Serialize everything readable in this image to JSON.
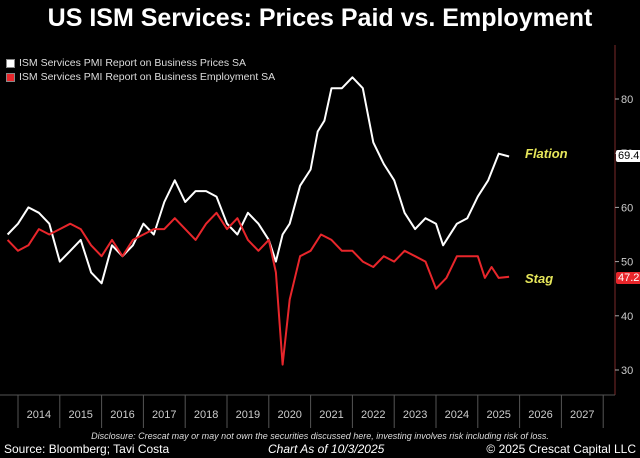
{
  "title": "US ISM Services: Prices Paid vs. Employment",
  "chart_data": {
    "type": "line",
    "title": "US ISM Services: Prices Paid vs. Employment",
    "yaxis_side": "right",
    "ylim": [
      25,
      88
    ],
    "yticks": [
      30,
      40,
      50,
      60,
      70,
      80
    ],
    "xlim": [
      2013.6,
      2028
    ],
    "xticks": [
      "2014",
      "2015",
      "2016",
      "2017",
      "2018",
      "2019",
      "2020",
      "2021",
      "2022",
      "2023",
      "2024",
      "2025",
      "2026",
      "2027"
    ],
    "grid": false,
    "legend": "top-left",
    "series": [
      {
        "name": "ISM Services PMI Report on Business Prices SA",
        "color": "#ffffff",
        "last_value": "69.4",
        "annotation": "Flation",
        "x": [
          2013.75,
          2014.0,
          2014.25,
          2014.5,
          2014.75,
          2015.0,
          2015.25,
          2015.5,
          2015.75,
          2016.0,
          2016.25,
          2016.5,
          2016.75,
          2017.0,
          2017.25,
          2017.5,
          2017.75,
          2018.0,
          2018.25,
          2018.5,
          2018.75,
          2019.0,
          2019.25,
          2019.5,
          2019.75,
          2020.0,
          2020.17,
          2020.33,
          2020.5,
          2020.75,
          2021.0,
          2021.17,
          2021.33,
          2021.5,
          2021.75,
          2022.0,
          2022.25,
          2022.5,
          2022.75,
          2023.0,
          2023.25,
          2023.5,
          2023.75,
          2024.0,
          2024.17,
          2024.5,
          2024.75,
          2025.0,
          2025.25,
          2025.5,
          2025.75
        ],
        "y": [
          55,
          57,
          60,
          59,
          57,
          50,
          52,
          54,
          48,
          46,
          53,
          51,
          53,
          57,
          55,
          61,
          65,
          61,
          63,
          63,
          62,
          57,
          55,
          59,
          57,
          54,
          50,
          55,
          57,
          64,
          67,
          74,
          76,
          82,
          82,
          84,
          82,
          72,
          68,
          65,
          59,
          56,
          58,
          57,
          53,
          57,
          58,
          62,
          65,
          69.9,
          69.4
        ]
      },
      {
        "name": "ISM Services PMI Report on Business Employment SA",
        "color": "#e8262b",
        "last_value": "47.2",
        "annotation": "Stag",
        "x": [
          2013.75,
          2014.0,
          2014.25,
          2014.5,
          2014.75,
          2015.0,
          2015.25,
          2015.5,
          2015.75,
          2016.0,
          2016.25,
          2016.5,
          2016.75,
          2017.0,
          2017.25,
          2017.5,
          2017.75,
          2018.0,
          2018.25,
          2018.5,
          2018.75,
          2019.0,
          2019.25,
          2019.5,
          2019.75,
          2020.0,
          2020.17,
          2020.33,
          2020.5,
          2020.75,
          2021.0,
          2021.25,
          2021.5,
          2021.75,
          2022.0,
          2022.25,
          2022.5,
          2022.75,
          2023.0,
          2023.25,
          2023.5,
          2023.75,
          2024.0,
          2024.25,
          2024.5,
          2024.75,
          2025.0,
          2025.17,
          2025.33,
          2025.5,
          2025.75
        ],
        "y": [
          54,
          52,
          53,
          56,
          55,
          56,
          57,
          56,
          53,
          51,
          54,
          51,
          54,
          55,
          56,
          56,
          58,
          56,
          54,
          57,
          59,
          56,
          58,
          54,
          52,
          54,
          48,
          31,
          43,
          51,
          52,
          55,
          54,
          52,
          52,
          50,
          49,
          51,
          50,
          52,
          51,
          50,
          45,
          47,
          51,
          51,
          51,
          47,
          49,
          47,
          47.2
        ]
      }
    ]
  },
  "footer": {
    "disclosure": "Disclosure: Crescat may or may not own the securities discussed here, investing involves risk including risk of loss.",
    "source": "Source: Bloomberg; Tavi Costa",
    "date": "Chart As of 10/3/2025",
    "copyright": "© 2025 Crescat Capital LLC"
  }
}
